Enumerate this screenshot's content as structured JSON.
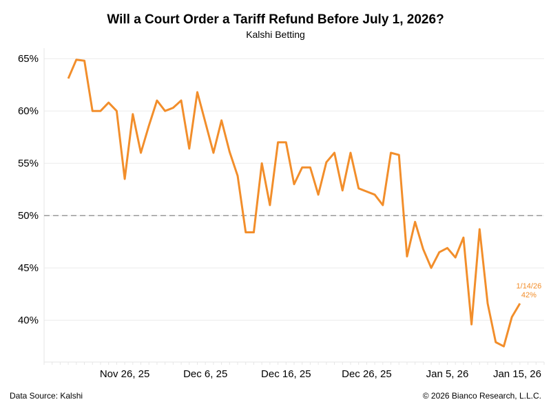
{
  "chart_data": {
    "type": "line",
    "title": "Will a Court Order a Tariff Refund Before July 1, 2026?",
    "subtitle": "Kalshi Betting",
    "xlabel": "",
    "ylabel": "",
    "x_start": "2025-11-19",
    "x_frequency": "daily",
    "xlim": [
      "2025-11-16",
      "2026-01-17"
    ],
    "ylim": [
      36,
      66
    ],
    "y_ticks": [
      "40%",
      "45%",
      "50%",
      "55%",
      "60%",
      "65%"
    ],
    "y_tick_values": [
      40,
      45,
      50,
      55,
      60,
      65
    ],
    "x_ticks": [
      "Nov 26, 25",
      "Dec 6, 25",
      "Dec 16, 25",
      "Dec 26, 25",
      "Jan 5, 26",
      "Jan 15, 26"
    ],
    "x_tick_dates": [
      "2025-11-26",
      "2025-12-06",
      "2025-12-16",
      "2025-12-26",
      "2026-01-05",
      "2026-01-15"
    ],
    "grid": "horizontal",
    "reference_line": {
      "value": 50,
      "style": "dashed",
      "color": "#999999"
    },
    "series": [
      {
        "color": "#f28e2b",
        "values": [
          63.1,
          64.9,
          64.8,
          60.0,
          60.0,
          60.8,
          60.0,
          53.5,
          59.7,
          56.0,
          58.6,
          61.0,
          60.0,
          60.3,
          61.0,
          56.4,
          61.8,
          58.9,
          56.0,
          59.1,
          56.1,
          53.8,
          48.4,
          48.4,
          55.0,
          51.0,
          57.0,
          57.0,
          53.0,
          54.6,
          54.6,
          52.0,
          55.1,
          56.0,
          52.4,
          56.0,
          52.6,
          52.3,
          52.0,
          51.0,
          56.0,
          55.8,
          46.1,
          49.4,
          46.8,
          45.0,
          46.5,
          46.9,
          46.0,
          47.9,
          39.6,
          48.7,
          41.6,
          37.9,
          37.5,
          40.3,
          41.6
        ]
      }
    ],
    "annotation": {
      "date_label": "1/14/26",
      "value_label": "42%"
    }
  },
  "footer": {
    "source": "Data Source: Kalshi",
    "copyright": "© 2026 Bianco Research, L.L.C."
  }
}
